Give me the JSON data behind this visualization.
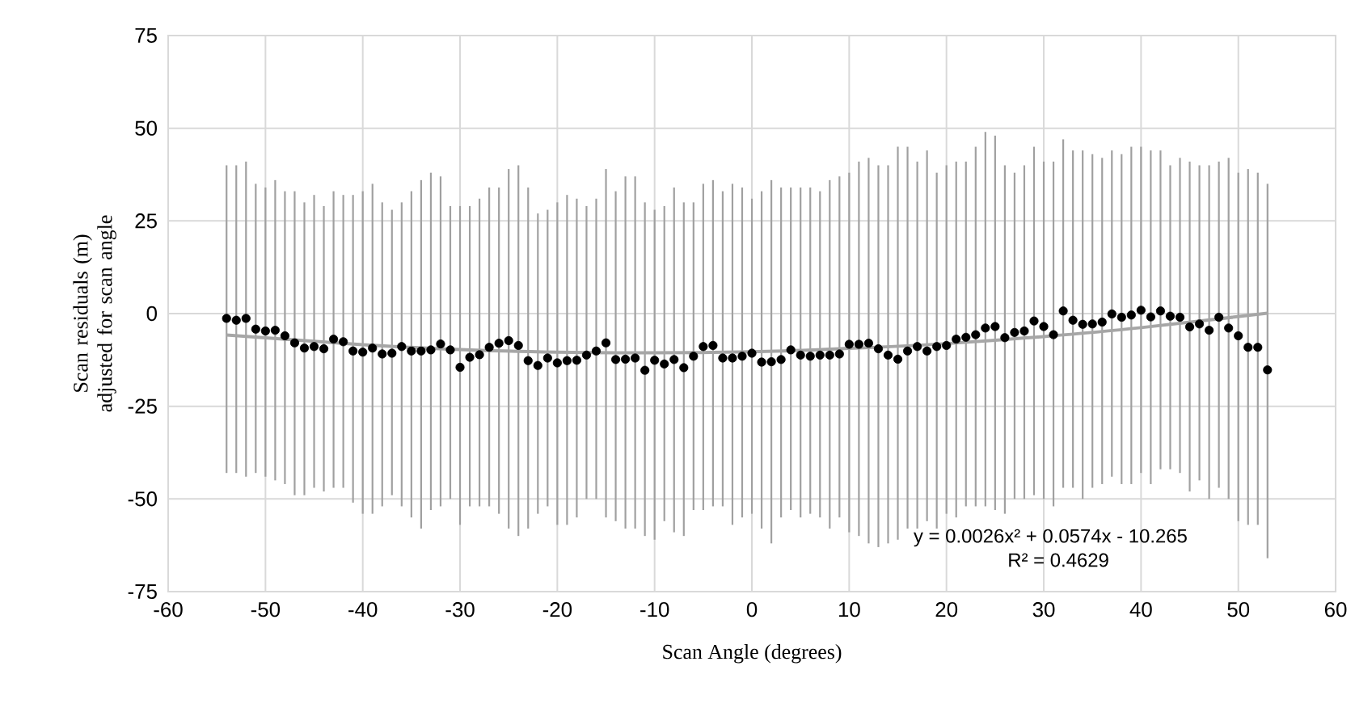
{
  "chart_data": {
    "type": "scatter",
    "xlabel": "Scan Angle (degrees)",
    "ylabel": "Scan residuals (m) adjusted for scan angle",
    "xlim": [
      -60,
      60
    ],
    "xticks": [
      -60,
      -50,
      -40,
      -30,
      -20,
      -10,
      0,
      10,
      20,
      30,
      40,
      50,
      60
    ],
    "ylim": [
      -75,
      75
    ],
    "yticks": [
      -75,
      -50,
      -25,
      0,
      25,
      50,
      75
    ],
    "grid": true,
    "annotations": [
      "y = 0.0026x² + 0.0574x - 10.265",
      "R² = 0.4629"
    ],
    "series": [
      {
        "color": "#000000",
        "marker": "circle",
        "x": [
          -54,
          -53,
          -52,
          -51,
          -50,
          -49,
          -48,
          -47,
          -46,
          -45,
          -44,
          -43,
          -42,
          -41,
          -40,
          -39,
          -38,
          -37,
          -36,
          -35,
          -34,
          -33,
          -32,
          -31,
          -30,
          -29,
          -28,
          -27,
          -26,
          -25,
          -24,
          -23,
          -22,
          -21,
          -20,
          -19,
          -18,
          -17,
          -16,
          -15,
          -14,
          -13,
          -12,
          -11,
          -10,
          -9,
          -8,
          -7,
          -6,
          -5,
          -4,
          -3,
          -2,
          -1,
          0,
          1,
          2,
          3,
          4,
          5,
          6,
          7,
          8,
          9,
          10,
          11,
          12,
          13,
          14,
          15,
          16,
          17,
          18,
          19,
          20,
          21,
          22,
          23,
          24,
          25,
          26,
          27,
          28,
          29,
          30,
          31,
          32,
          33,
          34,
          35,
          36,
          37,
          38,
          39,
          40,
          41,
          42,
          43,
          44,
          45,
          46,
          47,
          48,
          49,
          50,
          51,
          52,
          53
        ],
        "values": [
          -1.3,
          -1.8,
          -1.3,
          -4.2,
          -4.7,
          -4.5,
          -6.0,
          -7.9,
          -9.3,
          -8.9,
          -9.5,
          -6.9,
          -7.6,
          -10.1,
          -10.4,
          -9.3,
          -10.9,
          -10.7,
          -8.9,
          -10.1,
          -10.1,
          -9.8,
          -8.2,
          -9.8,
          -14.5,
          -11.8,
          -11.1,
          -9.1,
          -8.0,
          -7.3,
          -8.6,
          -12.7,
          -14.0,
          -12.0,
          -13.3,
          -12.7,
          -12.6,
          -11.2,
          -10.1,
          -7.9,
          -12.4,
          -12.3,
          -12.0,
          -15.3,
          -12.6,
          -13.6,
          -12.4,
          -14.6,
          -11.5,
          -8.9,
          -8.6,
          -12.0,
          -12.0,
          -11.5,
          -10.7,
          -13.1,
          -13.0,
          -12.4,
          -9.8,
          -11.2,
          -11.5,
          -11.2,
          -11.2,
          -10.9,
          -8.3,
          -8.3,
          -8.0,
          -9.5,
          -11.2,
          -12.3,
          -10.1,
          -8.9,
          -10.1,
          -8.9,
          -8.6,
          -6.9,
          -6.4,
          -5.7,
          -3.9,
          -3.5,
          -6.5,
          -5.1,
          -4.7,
          -2.0,
          -3.5,
          -5.7,
          0.7,
          -1.8,
          -2.9,
          -2.8,
          -2.3,
          -0.1,
          -1.0,
          -0.4,
          0.9,
          -0.9,
          0.7,
          -0.7,
          -1.0,
          -3.6,
          -2.8,
          -4.5,
          -1.0,
          -3.9,
          -6.0,
          -9.1,
          -9.1,
          -15.2
        ],
        "errors": [
          [
            -43,
            40
          ],
          [
            -43,
            40
          ],
          [
            -44,
            41
          ],
          [
            -43,
            35
          ],
          [
            -44,
            34
          ],
          [
            -45,
            36
          ],
          [
            -46,
            33
          ],
          [
            -49,
            33
          ],
          [
            -49,
            30
          ],
          [
            -47,
            32
          ],
          [
            -48,
            29
          ],
          [
            -47,
            33
          ],
          [
            -47,
            32
          ],
          [
            -51,
            32
          ],
          [
            -54,
            33
          ],
          [
            -54,
            35
          ],
          [
            -52,
            30
          ],
          [
            -49,
            28
          ],
          [
            -52,
            30
          ],
          [
            -55,
            33
          ],
          [
            -58,
            36
          ],
          [
            -53,
            38
          ],
          [
            -52,
            37
          ],
          [
            -50,
            29
          ],
          [
            -57,
            29
          ],
          [
            -52,
            29
          ],
          [
            -52,
            31
          ],
          [
            -52,
            34
          ],
          [
            -54,
            34
          ],
          [
            -58,
            39
          ],
          [
            -60,
            40
          ],
          [
            -58,
            34
          ],
          [
            -54,
            27
          ],
          [
            -52,
            28
          ],
          [
            -57,
            30
          ],
          [
            -57,
            32
          ],
          [
            -55,
            31
          ],
          [
            -50,
            29
          ],
          [
            -50,
            31
          ],
          [
            -55,
            39
          ],
          [
            -56,
            33
          ],
          [
            -58,
            37
          ],
          [
            -58,
            37
          ],
          [
            -60,
            30
          ],
          [
            -61,
            28
          ],
          [
            -56,
            29
          ],
          [
            -59,
            34
          ],
          [
            -60,
            30
          ],
          [
            -53,
            30
          ],
          [
            -53,
            35
          ],
          [
            -52,
            36
          ],
          [
            -52,
            33
          ],
          [
            -57,
            35
          ],
          [
            -55,
            34
          ],
          [
            -54,
            31
          ],
          [
            -58,
            33
          ],
          [
            -62,
            36
          ],
          [
            -55,
            34
          ],
          [
            -53,
            34
          ],
          [
            -55,
            34
          ],
          [
            -54,
            34
          ],
          [
            -55,
            33
          ],
          [
            -58,
            36
          ],
          [
            -55,
            37
          ],
          [
            -59,
            38
          ],
          [
            -60,
            41
          ],
          [
            -62,
            42
          ],
          [
            -63,
            40
          ],
          [
            -62,
            40
          ],
          [
            -61,
            45
          ],
          [
            -58,
            45
          ],
          [
            -58,
            41
          ],
          [
            -56,
            44
          ],
          [
            -58,
            38
          ],
          [
            -54,
            40
          ],
          [
            -55,
            41
          ],
          [
            -52,
            41
          ],
          [
            -52,
            45
          ],
          [
            -52,
            49
          ],
          [
            -53,
            48
          ],
          [
            -54,
            40
          ],
          [
            -50,
            38
          ],
          [
            -50,
            40
          ],
          [
            -49,
            45
          ],
          [
            -50,
            41
          ],
          [
            -52,
            41
          ],
          [
            -47,
            47
          ],
          [
            -47,
            44
          ],
          [
            -50,
            44
          ],
          [
            -47,
            43
          ],
          [
            -46,
            42
          ],
          [
            -44,
            44
          ],
          [
            -46,
            43
          ],
          [
            -46,
            45
          ],
          [
            -43,
            45
          ],
          [
            -46,
            44
          ],
          [
            -42,
            44
          ],
          [
            -42,
            40
          ],
          [
            -43,
            42
          ],
          [
            -48,
            41
          ],
          [
            -45,
            40
          ],
          [
            -50,
            40
          ],
          [
            -47,
            41
          ],
          [
            -50,
            42
          ],
          [
            -56,
            38
          ],
          [
            -57,
            39
          ],
          [
            -57,
            38
          ],
          [
            -66,
            35
          ]
        ]
      },
      {
        "type": "line",
        "color": "#a6a6a6",
        "marker": "none",
        "x": [
          -54,
          -40,
          -30,
          -20,
          -11,
          0,
          10,
          20,
          30,
          40,
          53
        ],
        "values": [
          -5.8,
          -8.4,
          -9.7,
          -10.4,
          -10.6,
          -10.3,
          -9.4,
          -8.1,
          -6.2,
          -3.8,
          0.1
        ]
      }
    ]
  }
}
